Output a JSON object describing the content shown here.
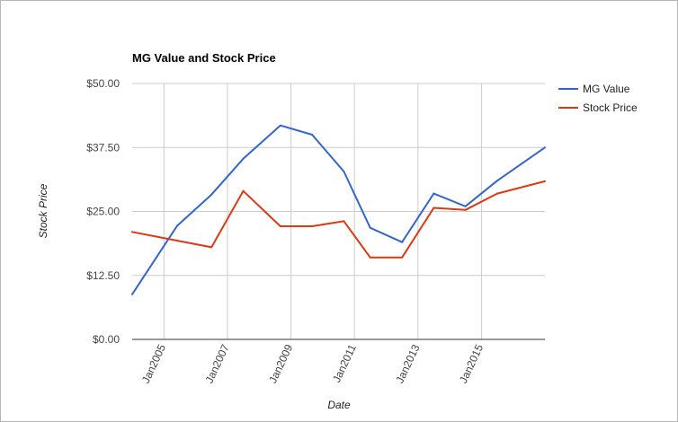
{
  "chart_data": {
    "type": "line",
    "title": "MG Value and Stock Price",
    "xlabel": "Date",
    "ylabel": "Stock Price",
    "ylim": [
      0,
      50
    ],
    "xlim": [
      "2004-01-01",
      "2016-12-31"
    ],
    "y_ticks": [
      "$0.00",
      "$12.50",
      "$25.00",
      "$37.50",
      "$50.00"
    ],
    "x_ticks": [
      "Jan2005",
      "Jan2007",
      "Jan2009",
      "Jan2011",
      "Jan2013",
      "Jan2015"
    ],
    "grid": true,
    "legend": "right",
    "series": [
      {
        "name": "MG Value",
        "color": "#3366cc",
        "x": [
          "2004-01-01",
          "2005-06-01",
          "2006-07-01",
          "2007-07-01",
          "2008-09-01",
          "2009-09-01",
          "2010-09-01",
          "2011-07-01",
          "2012-07-01",
          "2013-07-01",
          "2014-07-01",
          "2015-07-01",
          "2016-12-31"
        ],
        "values": [
          8.8,
          22.2,
          28.3,
          35.3,
          41.8,
          40.0,
          32.8,
          21.8,
          19.0,
          28.5,
          26.0,
          31.0,
          37.5
        ]
      },
      {
        "name": "Stock Price",
        "color": "#dc3912",
        "x": [
          "2004-01-01",
          "2005-06-01",
          "2006-07-01",
          "2007-07-01",
          "2008-09-01",
          "2009-09-01",
          "2010-09-01",
          "2011-07-01",
          "2012-07-01",
          "2013-07-01",
          "2014-07-01",
          "2015-07-01",
          "2016-12-31"
        ],
        "values": [
          21.0,
          19.3,
          18.0,
          29.0,
          22.1,
          22.1,
          23.1,
          16.0,
          16.0,
          25.7,
          25.3,
          28.5,
          30.9
        ]
      }
    ]
  }
}
